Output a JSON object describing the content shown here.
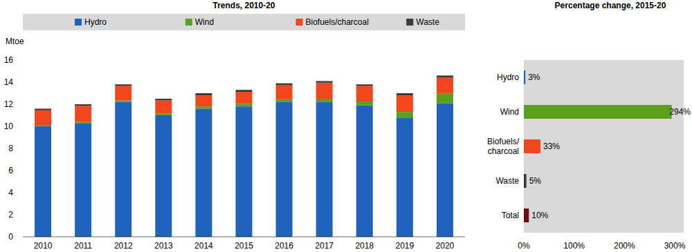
{
  "chart_data": [
    {
      "type": "bar",
      "title": "Trends, 2010-20",
      "ylabel": "Mtoe",
      "stacked": true,
      "legend": "top",
      "grid": false,
      "categories": [
        "2010",
        "2011",
        "2012",
        "2013",
        "2014",
        "2015",
        "2016",
        "2017",
        "2018",
        "2019",
        "2020"
      ],
      "series": [
        {
          "name": "Hydro",
          "color": "#1f63bf",
          "values": [
            10.0,
            10.3,
            12.2,
            11.0,
            11.6,
            11.8,
            12.2,
            12.2,
            11.9,
            10.8,
            12.1
          ]
        },
        {
          "name": "Wind",
          "color": "#5aa01e",
          "values": [
            0.05,
            0.1,
            0.15,
            0.15,
            0.2,
            0.22,
            0.25,
            0.3,
            0.35,
            0.5,
            0.85
          ]
        },
        {
          "name": "Biofuels/charcoal",
          "color": "#f2471c",
          "values": [
            1.4,
            1.45,
            1.3,
            1.2,
            1.0,
            1.1,
            1.3,
            1.45,
            1.4,
            1.5,
            1.45
          ]
        },
        {
          "name": "Waste",
          "color": "#3a3a3a",
          "values": [
            0.15,
            0.15,
            0.15,
            0.15,
            0.2,
            0.18,
            0.15,
            0.15,
            0.15,
            0.2,
            0.2
          ]
        }
      ],
      "ylim": [
        0,
        16
      ],
      "yticks": [
        0,
        2,
        4,
        6,
        8,
        10,
        12,
        14,
        16
      ]
    },
    {
      "type": "bar",
      "title": "Percentage change, 2015-20",
      "orientation": "horizontal",
      "data_labels": true,
      "grid": false,
      "categories": [
        "Hydro",
        "Wind",
        "Biofuels/charcoal",
        "Waste",
        "Total"
      ],
      "values": [
        3,
        294,
        33,
        5,
        10
      ],
      "value_labels": [
        "3%",
        "294%",
        "33%",
        "5%",
        "10%"
      ],
      "colors": [
        "#1f63bf",
        "#5aa01e",
        "#f2471c",
        "#3a3a3a",
        "#6b1010"
      ],
      "xlim": [
        0,
        300
      ],
      "xticks": [
        {
          "value": 0,
          "label": "0%"
        },
        {
          "value": 100,
          "label": "100%"
        },
        {
          "value": 200,
          "label": "200%"
        },
        {
          "value": 300,
          "label": "300%"
        }
      ]
    }
  ]
}
